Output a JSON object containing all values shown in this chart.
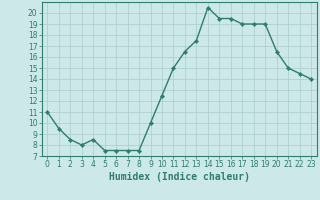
{
  "x": [
    0,
    1,
    2,
    3,
    4,
    5,
    6,
    7,
    8,
    9,
    10,
    11,
    12,
    13,
    14,
    15,
    16,
    17,
    18,
    19,
    20,
    21,
    22,
    23
  ],
  "y": [
    11,
    9.5,
    8.5,
    8,
    8.5,
    7.5,
    7.5,
    7.5,
    7.5,
    10,
    12.5,
    15,
    16.5,
    17.5,
    20.5,
    19.5,
    19.5,
    19,
    19,
    19,
    16.5,
    15,
    14.5,
    14
  ],
  "line_color": "#2e7d6e",
  "marker": "D",
  "marker_size": 2.2,
  "bg_color": "#cce8e8",
  "grid_color": "#aacccc",
  "xlabel": "Humidex (Indice chaleur)",
  "ylim": [
    7,
    21
  ],
  "xlim": [
    -0.5,
    23.5
  ],
  "yticks": [
    7,
    8,
    9,
    10,
    11,
    12,
    13,
    14,
    15,
    16,
    17,
    18,
    19,
    20
  ],
  "xticks": [
    0,
    1,
    2,
    3,
    4,
    5,
    6,
    7,
    8,
    9,
    10,
    11,
    12,
    13,
    14,
    15,
    16,
    17,
    18,
    19,
    20,
    21,
    22,
    23
  ],
  "axis_color": "#2e7d6e",
  "tick_color": "#2e7d6e",
  "label_color": "#2e7d6e",
  "xlabel_fontsize": 7,
  "tick_fontsize": 5.5,
  "linewidth": 1.0
}
